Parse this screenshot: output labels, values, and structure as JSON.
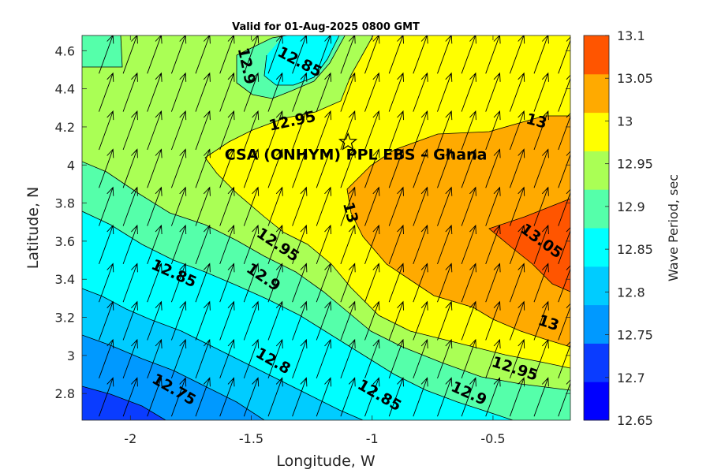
{
  "chart_data": {
    "type": "contour",
    "title": "Valid for 01-Aug-2025 0800 GMT",
    "xlabel": "Longitude, W",
    "ylabel": "Latitude, N",
    "xlim": [
      -2.2,
      -0.18
    ],
    "ylim": [
      2.66,
      4.68
    ],
    "x_ticks": [
      -2,
      -1.5,
      -1,
      -0.5
    ],
    "x_tick_labels": [
      "-2",
      "-1.5",
      "-1",
      "-0.5"
    ],
    "y_ticks": [
      2.8,
      3.0,
      3.2,
      3.4,
      3.6,
      3.8,
      4.0,
      4.2,
      4.4,
      4.6
    ],
    "y_tick_labels": [
      "2.8",
      "3",
      "3.2",
      "3.4",
      "3.6",
      "3.8",
      "4",
      "4.2",
      "4.4",
      "4.6"
    ],
    "colorbar": {
      "label": "Wave Period, sec",
      "levels": [
        12.65,
        12.7,
        12.75,
        12.8,
        12.85,
        12.9,
        12.95,
        13.0,
        13.05,
        13.1
      ],
      "tick_labels": [
        "12.65",
        "12.7",
        "12.75",
        "12.8",
        "12.85",
        "12.9",
        "12.95",
        "13",
        "13.05",
        "13.1"
      ],
      "colors": [
        "#0000ff",
        "#0a3cff",
        "#0099ff",
        "#00ccff",
        "#00ffff",
        "#55ffaa",
        "#aaff55",
        "#ffff00",
        "#ffaa00",
        "#ff5500"
      ]
    },
    "contour_labels": [
      {
        "text": "12.9",
        "lon": -1.52,
        "lat": 4.52,
        "angle": 78
      },
      {
        "text": "12.85",
        "lon": -1.3,
        "lat": 4.54,
        "angle": 28
      },
      {
        "text": "12.95",
        "lon": -1.33,
        "lat": 4.23,
        "angle": -12
      },
      {
        "text": "13",
        "lon": -0.32,
        "lat": 4.23,
        "angle": 15
      },
      {
        "text": "13",
        "lon": -1.09,
        "lat": 3.75,
        "angle": 75
      },
      {
        "text": "12.95",
        "lon": -1.39,
        "lat": 3.58,
        "angle": 34
      },
      {
        "text": "12.85",
        "lon": -1.82,
        "lat": 3.43,
        "angle": 24
      },
      {
        "text": "12.9",
        "lon": -1.45,
        "lat": 3.41,
        "angle": 34
      },
      {
        "text": "13.05",
        "lon": -0.3,
        "lat": 3.6,
        "angle": 36
      },
      {
        "text": "13",
        "lon": -0.27,
        "lat": 3.17,
        "angle": 18
      },
      {
        "text": "12.95",
        "lon": -0.41,
        "lat": 2.93,
        "angle": 18
      },
      {
        "text": "12.9",
        "lon": -0.6,
        "lat": 2.8,
        "angle": 24
      },
      {
        "text": "12.85",
        "lon": -0.97,
        "lat": 2.79,
        "angle": 30
      },
      {
        "text": "12.8",
        "lon": -1.41,
        "lat": 2.97,
        "angle": 30
      },
      {
        "text": "12.75",
        "lon": -1.82,
        "lat": 2.82,
        "angle": 30
      }
    ],
    "site": {
      "name": "CSA (ONHYM) PPL EBS  – Ghana",
      "lon": -1.1,
      "lat": 4.12
    },
    "wave_direction_field": {
      "description_units": "degrees clockwise from north (direction toward)",
      "direction_deg": 20,
      "grid_lon_start": -2.13,
      "grid_lon_step": 0.1,
      "grid_lat_start": 2.68,
      "grid_lat_step": 0.2
    }
  }
}
